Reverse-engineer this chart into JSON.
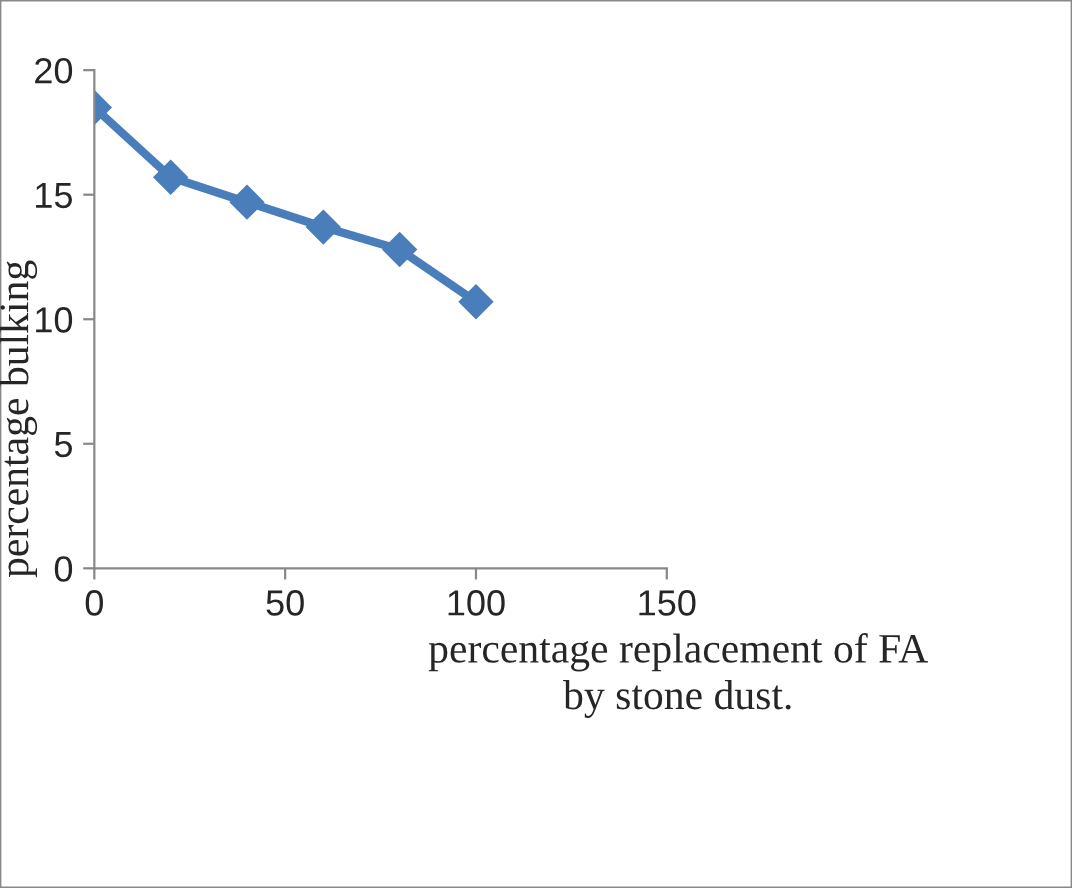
{
  "chart_data": {
    "type": "line",
    "xlabel": "percentage replacement of FA\nby stone dust.",
    "ylabel": "percentage bulking",
    "x": [
      0,
      20,
      40,
      60,
      80,
      100
    ],
    "series": [
      {
        "color": "#4a7ebb",
        "values": [
          18.5,
          15.7,
          14.7,
          13.7,
          12.8,
          10.7
        ]
      }
    ],
    "xlim": [
      0,
      150
    ],
    "xticks": [
      0,
      50,
      100,
      150
    ],
    "ylim": [
      0,
      20
    ],
    "yticks": [
      0,
      5,
      10,
      15,
      20
    ],
    "grid": false,
    "legend": false,
    "marker": "diamond",
    "line_style": "solid"
  }
}
